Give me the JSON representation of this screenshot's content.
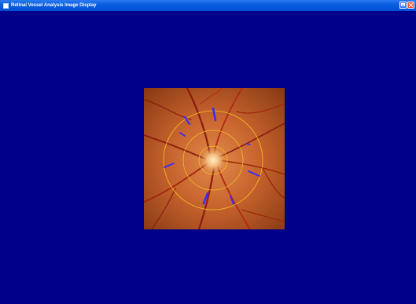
{
  "window": {
    "title": "Retinal Vessel Analysis Image Display",
    "icon": "app-icon",
    "buttons": [
      "maximize-icon",
      "close-icon"
    ]
  },
  "colors": {
    "background": "#00008a",
    "titlebar": "#0050d8",
    "ring": "#f2c220",
    "vessel_marker": "#3a2cff"
  },
  "image": {
    "subject": "retinal fundus photograph with optic disc",
    "overlays": [
      "optic-disc-ring",
      "inner-measurement-ring",
      "outer-measurement-ring",
      "vessel-markers"
    ]
  }
}
